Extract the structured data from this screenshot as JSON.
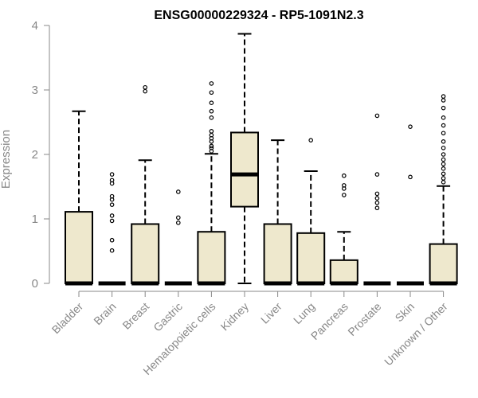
{
  "chart_data": {
    "type": "boxplot",
    "title": "ENSG00000229324 - RP5-1091N2.3",
    "ylabel": "Expression",
    "ylim": [
      0,
      4
    ],
    "yticks": [
      0,
      1,
      2,
      3,
      4
    ],
    "colors": {
      "box_fill": "#EEE8CD",
      "axis": "#888888",
      "stroke": "#000000"
    },
    "categories": [
      "Bladder",
      "Brain",
      "Breast",
      "Gastric",
      "Hematopoietic cells",
      "Kidney",
      "Liver",
      "Lung",
      "Pancreas",
      "Prostate",
      "Skin",
      "Unknown / Other"
    ],
    "boxes": [
      {
        "name": "Bladder",
        "q1": 0,
        "median": 0,
        "q3": 1.11,
        "whisker_low": 0,
        "whisker_high": 2.67,
        "outliers": []
      },
      {
        "name": "Brain",
        "q1": 0,
        "median": 0,
        "q3": 0,
        "whisker_low": 0,
        "whisker_high": 0,
        "outliers": [
          0.51,
          0.67,
          0.97,
          1.05,
          1.22,
          1.3,
          1.35,
          1.55,
          1.6,
          1.69
        ]
      },
      {
        "name": "Breast",
        "q1": 0,
        "median": 0,
        "q3": 0.92,
        "whisker_low": 0,
        "whisker_high": 1.91,
        "outliers": [
          2.98,
          3.04
        ]
      },
      {
        "name": "Gastric",
        "q1": 0,
        "median": 0,
        "q3": 0,
        "whisker_low": 0,
        "whisker_high": 0,
        "outliers": [
          0.94,
          1.02,
          1.42
        ]
      },
      {
        "name": "Hematopoietic cells",
        "q1": 0,
        "median": 0,
        "q3": 0.8,
        "whisker_low": 0,
        "whisker_high": 2.01,
        "outliers": [
          2.05,
          2.1,
          2.13,
          2.2,
          2.25,
          2.3,
          2.36,
          2.57,
          2.67,
          2.8,
          2.96,
          3.1
        ]
      },
      {
        "name": "Kidney",
        "q1": 1.19,
        "median": 1.69,
        "q3": 2.34,
        "whisker_low": 0,
        "whisker_high": 3.87,
        "outliers": []
      },
      {
        "name": "Liver",
        "q1": 0,
        "median": 0,
        "q3": 0.92,
        "whisker_low": 0,
        "whisker_high": 2.22,
        "outliers": []
      },
      {
        "name": "Lung",
        "q1": 0,
        "median": 0,
        "q3": 0.78,
        "whisker_low": 0,
        "whisker_high": 1.74,
        "outliers": [
          2.22
        ]
      },
      {
        "name": "Pancreas",
        "q1": 0,
        "median": 0,
        "q3": 0.36,
        "whisker_low": 0,
        "whisker_high": 0.8,
        "outliers": [
          1.37,
          1.47,
          1.52,
          1.67
        ]
      },
      {
        "name": "Prostate",
        "q1": 0,
        "median": 0,
        "q3": 0,
        "whisker_low": 0,
        "whisker_high": 0,
        "outliers": [
          1.17,
          1.25,
          1.32,
          1.39,
          1.69,
          2.6
        ]
      },
      {
        "name": "Skin",
        "q1": 0,
        "median": 0,
        "q3": 0,
        "whisker_low": 0,
        "whisker_high": 0,
        "outliers": [
          1.65,
          2.43
        ]
      },
      {
        "name": "Unknown / Other",
        "q1": 0,
        "median": 0,
        "q3": 0.61,
        "whisker_low": 0,
        "whisker_high": 1.51,
        "outliers": [
          1.57,
          1.63,
          1.7,
          1.78,
          1.85,
          1.92,
          2.0,
          2.1,
          2.2,
          2.33,
          2.45,
          2.57,
          2.72,
          2.84,
          2.9
        ]
      }
    ]
  }
}
